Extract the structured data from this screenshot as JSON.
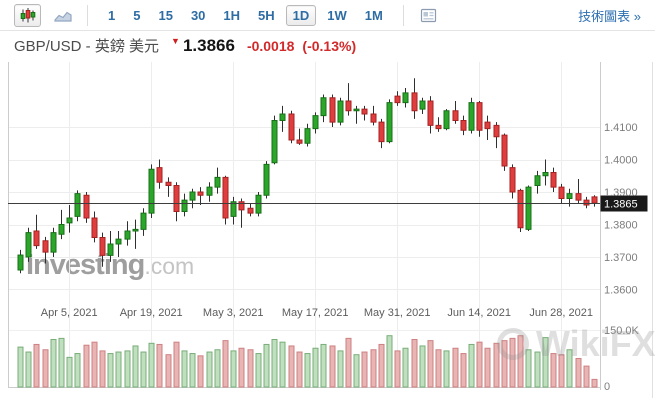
{
  "toolbar": {
    "chart_type_buttons": [
      {
        "id": "candlestick",
        "icon": "candlestick-icon",
        "selected": true
      },
      {
        "id": "line",
        "icon": "line-chart-icon",
        "selected": false
      }
    ],
    "timeframes": [
      {
        "label": "1",
        "selected": false
      },
      {
        "label": "5",
        "selected": false
      },
      {
        "label": "15",
        "selected": false
      },
      {
        "label": "30",
        "selected": false
      },
      {
        "label": "1H",
        "selected": false
      },
      {
        "label": "5H",
        "selected": false
      },
      {
        "label": "1D",
        "selected": true
      },
      {
        "label": "1W",
        "selected": false
      },
      {
        "label": "1M",
        "selected": false
      }
    ],
    "news_button_icon": "news-panel-icon",
    "tech_chart_link": "技術圖表 »"
  },
  "header": {
    "title": "GBP/USD - 英鎊 美元",
    "arrow": "▼",
    "price": "1.3866",
    "change": "-0.0018",
    "change_pct": "(-0.13%)"
  },
  "watermarks": {
    "main": "Investing",
    "main_suffix": ".com",
    "secondary": "WikiFX"
  },
  "chart_data": {
    "type": "candlestick",
    "symbol": "GBP/USD",
    "interval": "1D",
    "grid": true,
    "y_ticks": {
      "labels": [
        "1.4100",
        "1.4000",
        "1.3900",
        "1.3800",
        "1.3700",
        "1.3600"
      ],
      "values": [
        1.41,
        1.4,
        1.39,
        1.38,
        1.37,
        1.36
      ]
    },
    "x_ticks": {
      "indices": [
        6,
        16,
        26,
        36,
        46,
        56,
        66
      ],
      "labels": [
        "Apr 5, 2021",
        "Apr 19, 2021",
        "May 3, 2021",
        "May 17, 2021",
        "May 31, 2021",
        "Jun 14, 2021",
        "Jun 28, 2021"
      ]
    },
    "volume_axis": {
      "labels": [
        "150.0K",
        "0"
      ],
      "values": [
        150000,
        0
      ]
    },
    "last_price_tag": "1.3865",
    "last_price_value": 1.3865,
    "colors": {
      "up_fill": "#2ba62b",
      "up_stroke": "#176f17",
      "down_fill": "#e03e3e",
      "down_stroke": "#a32222",
      "wick": "#2f2f2f",
      "vol_up_fill": "#bfdfbf",
      "vol_up_stroke": "#79ad79",
      "vol_down_fill": "#e9b4b4",
      "vol_down_stroke": "#cd8181",
      "grid": "#ededed",
      "axis_border": "#cccccc",
      "price_line": "#3d3d3d",
      "tag_bg": "#191919",
      "tag_text": "#ffffff",
      "accent_blue": "#2e6da4",
      "change_red": "#d22a2a"
    },
    "candle_fields": [
      "date",
      "open",
      "high",
      "low",
      "close",
      "volume"
    ],
    "candles": [
      [
        "Mar 26, 2021",
        1.366,
        1.3722,
        1.365,
        1.3706,
        105000
      ],
      [
        "Mar 29, 2021",
        1.37,
        1.379,
        1.3685,
        1.3775,
        92000
      ],
      [
        "Mar 30, 2021",
        1.378,
        1.383,
        1.3725,
        1.3735,
        112000
      ],
      [
        "Mar 31, 2021",
        1.375,
        1.3762,
        1.368,
        1.3715,
        98000
      ],
      [
        "Apr 1, 2021",
        1.3715,
        1.379,
        1.37,
        1.3775,
        125000
      ],
      [
        "Apr 2, 2021",
        1.377,
        1.3845,
        1.3755,
        1.38,
        128000
      ],
      [
        "Apr 5, 2021",
        1.3805,
        1.386,
        1.3775,
        1.382,
        78000
      ],
      [
        "Apr 6, 2021",
        1.3825,
        1.3905,
        1.381,
        1.3895,
        88000
      ],
      [
        "Apr 7, 2021",
        1.389,
        1.39,
        1.3805,
        1.382,
        110000
      ],
      [
        "Apr 8, 2021",
        1.382,
        1.384,
        1.3745,
        1.376,
        118000
      ],
      [
        "Apr 9, 2021",
        1.376,
        1.3775,
        1.367,
        1.3705,
        95000
      ],
      [
        "Apr 12, 2021",
        1.3705,
        1.378,
        1.3685,
        1.374,
        88000
      ],
      [
        "Apr 13, 2021",
        1.374,
        1.378,
        1.37,
        1.3755,
        92000
      ],
      [
        "Apr 14, 2021",
        1.3755,
        1.381,
        1.3735,
        1.378,
        95000
      ],
      [
        "Apr 15, 2021",
        1.378,
        1.3815,
        1.3725,
        1.3785,
        108000
      ],
      [
        "Apr 16, 2021",
        1.3785,
        1.385,
        1.3765,
        1.3835,
        92000
      ],
      [
        "Apr 19, 2021",
        1.3835,
        1.3985,
        1.382,
        1.397,
        115000
      ],
      [
        "Apr 20, 2021",
        1.3975,
        1.4,
        1.391,
        1.393,
        112000
      ],
      [
        "Apr 21, 2021",
        1.393,
        1.3945,
        1.3885,
        1.392,
        85000
      ],
      [
        "Apr 22, 2021",
        1.392,
        1.393,
        1.381,
        1.384,
        118000
      ],
      [
        "Apr 23, 2021",
        1.384,
        1.3895,
        1.3825,
        1.3875,
        95000
      ],
      [
        "Apr 26, 2021",
        1.3875,
        1.391,
        1.385,
        1.39,
        88000
      ],
      [
        "Apr 27, 2021",
        1.39,
        1.3915,
        1.386,
        1.389,
        82000
      ],
      [
        "Apr 28, 2021",
        1.389,
        1.393,
        1.387,
        1.3915,
        92000
      ],
      [
        "Apr 29, 2021",
        1.3915,
        1.3975,
        1.3895,
        1.3945,
        98000
      ],
      [
        "Apr 30, 2021",
        1.3945,
        1.395,
        1.38,
        1.382,
        122000
      ],
      [
        "May 3, 2021",
        1.3825,
        1.3885,
        1.38,
        1.387,
        95000
      ],
      [
        "May 4, 2021",
        1.387,
        1.388,
        1.379,
        1.3845,
        102000
      ],
      [
        "May 5, 2021",
        1.385,
        1.3865,
        1.3825,
        1.3835,
        98000
      ],
      [
        "May 6, 2021",
        1.3835,
        1.39,
        1.3825,
        1.389,
        88000
      ],
      [
        "May 7, 2021",
        1.389,
        1.3995,
        1.388,
        1.3985,
        112000
      ],
      [
        "May 10, 2021",
        1.399,
        1.4135,
        1.3985,
        1.412,
        125000
      ],
      [
        "May 11, 2021",
        1.412,
        1.4165,
        1.4085,
        1.414,
        118000
      ],
      [
        "May 12, 2021",
        1.414,
        1.415,
        1.405,
        1.406,
        108000
      ],
      [
        "May 13, 2021",
        1.406,
        1.4095,
        1.4045,
        1.405,
        92000
      ],
      [
        "May 14, 2021",
        1.405,
        1.411,
        1.404,
        1.4095,
        88000
      ],
      [
        "May 17, 2021",
        1.4095,
        1.4145,
        1.408,
        1.4135,
        102000
      ],
      [
        "May 18, 2021",
        1.4135,
        1.42,
        1.4115,
        1.419,
        112000
      ],
      [
        "May 19, 2021",
        1.419,
        1.42,
        1.41,
        1.4115,
        108000
      ],
      [
        "May 20, 2021",
        1.4115,
        1.419,
        1.4105,
        1.418,
        95000
      ],
      [
        "May 21, 2021",
        1.418,
        1.4235,
        1.4135,
        1.415,
        128000
      ],
      [
        "May 24, 2021",
        1.415,
        1.4165,
        1.411,
        1.4155,
        85000
      ],
      [
        "May 25, 2021",
        1.4155,
        1.4165,
        1.412,
        1.414,
        92000
      ],
      [
        "May 26, 2021",
        1.414,
        1.4165,
        1.4105,
        1.4115,
        98000
      ],
      [
        "May 27, 2021",
        1.4115,
        1.4125,
        1.4035,
        1.4055,
        112000
      ],
      [
        "May 28, 2021",
        1.4055,
        1.4185,
        1.405,
        1.4175,
        135000
      ],
      [
        "May 31, 2021",
        1.4195,
        1.421,
        1.4165,
        1.4175,
        95000
      ],
      [
        "Jun 1, 2021",
        1.4175,
        1.422,
        1.416,
        1.4205,
        102000
      ],
      [
        "Jun 2, 2021",
        1.4205,
        1.425,
        1.4125,
        1.415,
        125000
      ],
      [
        "Jun 3, 2021",
        1.4155,
        1.419,
        1.414,
        1.418,
        108000
      ],
      [
        "Jun 4, 2021",
        1.418,
        1.4195,
        1.408,
        1.4105,
        122000
      ],
      [
        "Jun 7, 2021",
        1.4105,
        1.413,
        1.4085,
        1.4095,
        98000
      ],
      [
        "Jun 8, 2021",
        1.4095,
        1.4155,
        1.409,
        1.415,
        95000
      ],
      [
        "Jun 9, 2021",
        1.415,
        1.418,
        1.411,
        1.412,
        102000
      ],
      [
        "Jun 10, 2021",
        1.412,
        1.4135,
        1.4075,
        1.409,
        88000
      ],
      [
        "Jun 11, 2021",
        1.409,
        1.419,
        1.408,
        1.4175,
        112000
      ],
      [
        "Jun 14, 2021",
        1.4175,
        1.418,
        1.407,
        1.409,
        118000
      ],
      [
        "Jun 15, 2021",
        1.4115,
        1.4135,
        1.406,
        1.4095,
        102000
      ],
      [
        "Jun 16, 2021",
        1.4105,
        1.4115,
        1.4035,
        1.407,
        115000
      ],
      [
        "Jun 17, 2021",
        1.4075,
        1.408,
        1.3965,
        1.398,
        122000
      ],
      [
        "Jun 18, 2021",
        1.3975,
        1.3985,
        1.388,
        1.39,
        128000
      ],
      [
        "Jun 21, 2021",
        1.3905,
        1.391,
        1.3777,
        1.379,
        135000
      ],
      [
        "Jun 22, 2021",
        1.3785,
        1.392,
        1.378,
        1.3915,
        98000
      ],
      [
        "Jun 23, 2021",
        1.392,
        1.3965,
        1.3895,
        1.395,
        92000
      ],
      [
        "Jun 24, 2021",
        1.395,
        1.4,
        1.392,
        1.396,
        130000
      ],
      [
        "Jun 25, 2021",
        1.396,
        1.3975,
        1.39,
        1.3915,
        88000
      ],
      [
        "Jun 28, 2021",
        1.3915,
        1.3925,
        1.3865,
        1.388,
        85000
      ],
      [
        "Jun 29, 2021",
        1.388,
        1.391,
        1.3855,
        1.3895,
        98000
      ],
      [
        "Jun 30, 2021",
        1.3895,
        1.394,
        1.3865,
        1.3875,
        75000
      ],
      [
        "Jul 1, 2021",
        1.3875,
        1.3885,
        1.385,
        1.386,
        55000
      ],
      [
        "Jul 2, 2021",
        1.3885,
        1.389,
        1.3855,
        1.3866,
        20000
      ]
    ]
  }
}
